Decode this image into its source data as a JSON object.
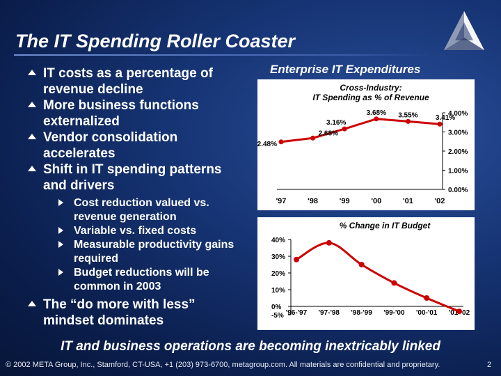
{
  "slide": {
    "title": "The IT Spending Roller Coaster",
    "bullets": [
      {
        "text": "IT costs as a percentage of revenue decline"
      },
      {
        "text": "More business functions externalized"
      },
      {
        "text": "Vendor consolidation accelerates"
      },
      {
        "text": "Shift in IT spending patterns and drivers",
        "sub": [
          "Cost reduction valued vs. revenue generation",
          "Variable vs. fixed costs",
          "Measurable productivity gains required",
          "Budget reductions will be common in 2003"
        ]
      },
      {
        "text": "The “do more with less” mindset dominates"
      }
    ],
    "right_title": "Enterprise IT Expenditures",
    "tagline": "IT and business operations are becoming inextricably linked",
    "footer": "© 2002 META Group, Inc., Stamford, CT-USA, +1 (203) 973-6700, metagroup.com. All materials are confidential and proprietary.",
    "page_number": "2"
  },
  "chart_data": [
    {
      "type": "line",
      "title": "Cross-Industry:",
      "subtitle": "IT Spending as % of Revenue",
      "x": [
        "'97",
        "'98",
        "'99",
        "'00",
        "'01",
        "'02"
      ],
      "values": [
        2.48,
        2.68,
        3.16,
        3.68,
        3.55,
        3.41
      ],
      "data_labels": [
        "2.48%",
        "2.68%",
        "3.16%",
        "3.68%",
        "3.55%",
        "3.41%"
      ],
      "y_ticks": [
        "0.00%",
        "1.00%",
        "2.00%",
        "3.00%",
        "4.00%"
      ],
      "ylim": [
        0,
        4
      ],
      "y_axis_side": "right",
      "color": "#cc0000"
    },
    {
      "type": "line",
      "title": "% Change in IT Budget",
      "x": [
        "'96-'97",
        "'97-'98",
        "'98-'99",
        "'99-'00",
        "'00-'01",
        "'01-'02"
      ],
      "values": [
        28,
        38,
        25,
        14,
        5,
        -3
      ],
      "y_ticks": [
        "-5%",
        "0%",
        "10%",
        "20%",
        "30%",
        "40%"
      ],
      "ylim": [
        -5,
        40
      ],
      "y_axis_side": "left",
      "color": "#cc0000"
    }
  ]
}
